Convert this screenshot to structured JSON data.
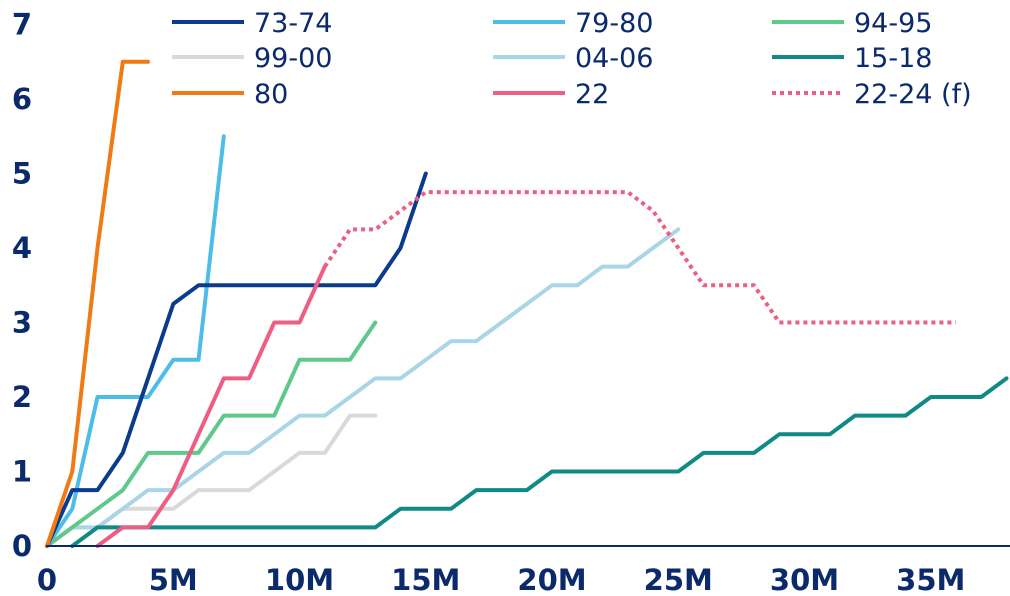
{
  "chart_data": {
    "type": "line",
    "xlim": [
      0,
      38
    ],
    "ylim": [
      0,
      7
    ],
    "x_ticks": [
      {
        "value": 0,
        "label": "0"
      },
      {
        "value": 5,
        "label": "5M"
      },
      {
        "value": 10,
        "label": "10M"
      },
      {
        "value": 15,
        "label": "15M"
      },
      {
        "value": 20,
        "label": "20M"
      },
      {
        "value": 25,
        "label": "25M"
      },
      {
        "value": 30,
        "label": "30M"
      },
      {
        "value": 35,
        "label": "35M"
      }
    ],
    "y_ticks": [
      {
        "value": 0,
        "label": "0"
      },
      {
        "value": 1,
        "label": "1"
      },
      {
        "value": 2,
        "label": "2"
      },
      {
        "value": 3,
        "label": "3"
      },
      {
        "value": 4,
        "label": "4"
      },
      {
        "value": 5,
        "label": "5"
      },
      {
        "value": 6,
        "label": "6"
      },
      {
        "value": 7,
        "label": "7"
      }
    ],
    "grid": false,
    "legend": "top",
    "series": [
      {
        "name": "73-74",
        "color": "#0b3b8c",
        "dash": false,
        "x": [
          0,
          1,
          2,
          3,
          5,
          6,
          7,
          8,
          9,
          10,
          11,
          12,
          13,
          14,
          15
        ],
        "y": [
          0,
          0.75,
          0.75,
          1.25,
          3.25,
          3.5,
          3.5,
          3.5,
          3.5,
          3.5,
          3.5,
          3.5,
          3.5,
          4.0,
          5.0
        ]
      },
      {
        "name": "79-80",
        "color": "#4cbde9",
        "dash": false,
        "x": [
          0,
          1,
          2,
          3,
          4,
          5,
          6,
          7
        ],
        "y": [
          0,
          0.5,
          2.0,
          2.0,
          2.0,
          2.5,
          2.5,
          5.5
        ]
      },
      {
        "name": "94-95",
        "color": "#5ec98a",
        "dash": false,
        "x": [
          0,
          1,
          2,
          3,
          4,
          5,
          6,
          7,
          8,
          9,
          10,
          11,
          12,
          13
        ],
        "y": [
          0,
          0.25,
          0.5,
          0.75,
          1.25,
          1.25,
          1.25,
          1.75,
          1.75,
          1.75,
          2.5,
          2.5,
          2.5,
          3.0
        ]
      },
      {
        "name": "99-00",
        "color": "#d9d9d9",
        "dash": false,
        "x": [
          0,
          1,
          2,
          3,
          4,
          5,
          6,
          7,
          8,
          9,
          10,
          11,
          12,
          13
        ],
        "y": [
          0,
          0.25,
          0.25,
          0.5,
          0.5,
          0.5,
          0.75,
          0.75,
          0.75,
          1.0,
          1.25,
          1.25,
          1.75,
          1.75
        ]
      },
      {
        "name": "04-06",
        "color": "#a9d5e6",
        "dash": false,
        "x": [
          0,
          1,
          2,
          3,
          4,
          5,
          6,
          7,
          8,
          9,
          10,
          11,
          12,
          13,
          14,
          15,
          16,
          17,
          18,
          19,
          20,
          21,
          22,
          23,
          24,
          25
        ],
        "y": [
          0,
          0.25,
          0.25,
          0.5,
          0.75,
          0.75,
          1.0,
          1.25,
          1.25,
          1.5,
          1.75,
          1.75,
          2.0,
          2.25,
          2.25,
          2.5,
          2.75,
          2.75,
          3.0,
          3.25,
          3.5,
          3.5,
          3.75,
          3.75,
          4.0,
          4.25
        ]
      },
      {
        "name": "15-18",
        "color": "#0f8a86",
        "dash": false,
        "x": [
          1,
          2,
          3,
          4,
          5,
          6,
          7,
          8,
          9,
          10,
          11,
          12,
          13,
          14,
          15,
          16,
          17,
          18,
          19,
          20,
          21,
          22,
          23,
          24,
          25,
          26,
          27,
          28,
          29,
          30,
          31,
          32,
          33,
          34,
          35,
          36,
          37,
          38
        ],
        "y": [
          0,
          0.25,
          0.25,
          0.25,
          0.25,
          0.25,
          0.25,
          0.25,
          0.25,
          0.25,
          0.25,
          0.25,
          0.25,
          0.5,
          0.5,
          0.5,
          0.75,
          0.75,
          0.75,
          1.0,
          1.0,
          1.0,
          1.0,
          1.0,
          1.0,
          1.25,
          1.25,
          1.25,
          1.5,
          1.5,
          1.5,
          1.75,
          1.75,
          1.75,
          2.0,
          2.0,
          2.0,
          2.25
        ]
      },
      {
        "name": "80",
        "color": "#f07a13",
        "dash": false,
        "x": [
          0,
          1,
          2,
          3,
          4
        ],
        "y": [
          0,
          1.0,
          4.0,
          6.5,
          6.5
        ]
      },
      {
        "name": "22",
        "color": "#ee5e82",
        "dash": false,
        "x": [
          2,
          3,
          4,
          5,
          6,
          7,
          8,
          9,
          10,
          11
        ],
        "y": [
          0,
          0.25,
          0.25,
          0.75,
          1.5,
          2.25,
          2.25,
          3.0,
          3.0,
          3.75
        ]
      },
      {
        "name": "22-24 (f)",
        "color": "#ee5e82",
        "dash": true,
        "x": [
          11,
          12,
          13,
          14,
          15,
          16,
          17,
          18,
          19,
          20,
          21,
          22,
          23,
          24,
          25,
          26,
          27,
          28,
          29,
          30,
          31,
          32,
          33,
          34,
          35,
          36
        ],
        "y": [
          3.75,
          4.25,
          4.25,
          4.5,
          4.75,
          4.75,
          4.75,
          4.75,
          4.75,
          4.75,
          4.75,
          4.75,
          4.75,
          4.5,
          4.0,
          3.5,
          3.5,
          3.5,
          3.0,
          3.0,
          3.0,
          3.0,
          3.0,
          3.0,
          3.0,
          3.0
        ]
      }
    ]
  }
}
